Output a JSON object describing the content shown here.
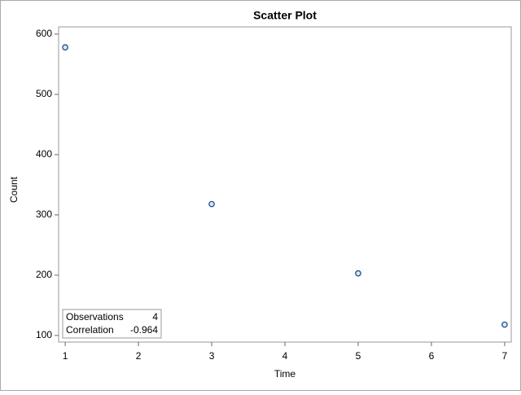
{
  "chart_data": {
    "type": "scatter",
    "title": "Scatter Plot",
    "x_label": "Time",
    "y_label": "Count",
    "series": [
      {
        "name": "Count",
        "color": "#1f4e8c",
        "x": [
          1,
          3,
          5,
          7
        ],
        "values": [
          578,
          318,
          203,
          118
        ]
      }
    ],
    "xlim": [
      0.91,
      7.09
    ],
    "ylim": [
      89,
      612
    ],
    "xticks": [
      1,
      2,
      3,
      4,
      5,
      6,
      7
    ],
    "yticks": [
      100,
      200,
      300,
      400,
      500,
      600
    ],
    "inset": {
      "rows": [
        [
          "Observations",
          4
        ],
        [
          "Correlation",
          -0.964
        ]
      ]
    }
  }
}
